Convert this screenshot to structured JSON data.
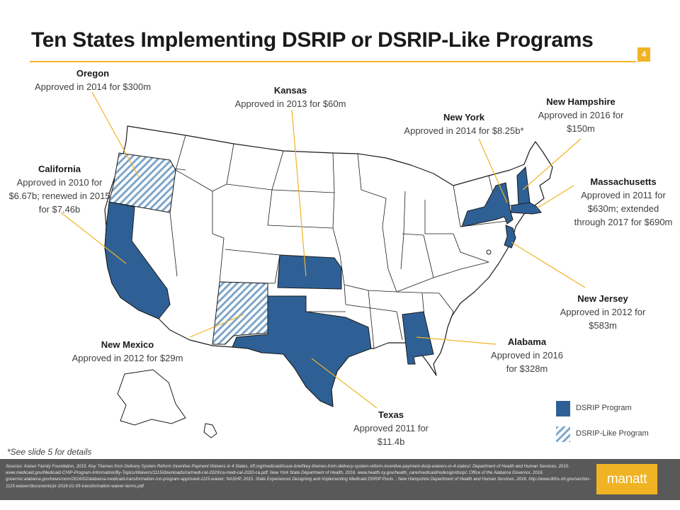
{
  "slide": {
    "title": "Ten States Implementing DSRIP or DSRIP-Like Programs",
    "page_number": "4",
    "footnote": "*See slide 5 for details",
    "sources": "Sources: Kaiser Family Foundation, 2015. Key Themes from Delivery System Reform Incentive Payment Waivers in 4 States. kff.org/medicaid/issue-brief/key-themes-from-delivery-system-reform-incentive-payment-dsrip-waivers-in-4-states/; Department of Health and Human Services, 2015. www.medicaid.gov/Medicaid-CHIP-Program-Information/By-Topics/Waivers/1115/downloads/ca/medi-cal-2020/ca-medi-cal-2020-ca.pdf; New York State Department of Health, 2016. www.health.ny.gov/health_care/medicaid/redesign/dsrip/; Office of the Alabama Governor, 2016. governor.alabama.gov/newsroom/2016/02/alabama-medicaid-transformation-rco-program-approved-1115-waiver; NASHP, 2015. State Experiences Designing and Implementing Medicaid DSRIP Pools. ; New Hampshire Department of Health and Human Services, 2016. http://www.dhhs.nh.gov/section-1115-waiver/documents/pr-2016-01-05-transformation-waiver-terms.pdf",
    "logo_text": "manatt"
  },
  "colors": {
    "dsrip": "#2e6095",
    "dsrip_like_stripe": "#7ea6c9",
    "accent": "#f0b323",
    "leader": "#f0b323",
    "border": "#1a1a1a"
  },
  "legend": [
    {
      "label": "DSRIP Program",
      "style": "solid"
    },
    {
      "label": "DSRIP-Like Program",
      "style": "hatched"
    }
  ],
  "states": [
    {
      "key": "oregon",
      "name": "Oregon",
      "text": "Approved in 2014 for $300m",
      "program": "dsrip-like"
    },
    {
      "key": "california",
      "name": "California",
      "text": "Approved in 2010 for $6.67b; renewed in 2015 for $7.46b",
      "program": "dsrip"
    },
    {
      "key": "kansas",
      "name": "Kansas",
      "text": "Approved in 2013 for $60m",
      "program": "dsrip"
    },
    {
      "key": "new_york",
      "name": "New York",
      "text": "Approved in 2014 for $8.25b*",
      "program": "dsrip"
    },
    {
      "key": "new_hampshire",
      "name": "New Hampshire",
      "text": "Approved in 2016 for $150m",
      "program": "dsrip"
    },
    {
      "key": "massachusetts",
      "name": "Massachusetts",
      "text": "Approved in 2011 for $630m; extended through 2017 for $690m",
      "program": "dsrip"
    },
    {
      "key": "new_jersey",
      "name": "New Jersey",
      "text": "Approved in 2012 for $583m",
      "program": "dsrip"
    },
    {
      "key": "alabama",
      "name": "Alabama",
      "text": "Approved in 2016 for $328m",
      "program": "dsrip"
    },
    {
      "key": "texas",
      "name": "Texas",
      "text": "Approved 2011 for $11.4b",
      "program": "dsrip"
    },
    {
      "key": "new_mexico",
      "name": "New Mexico",
      "text": "Approved in 2012 for $29m",
      "program": "dsrip-like"
    }
  ]
}
